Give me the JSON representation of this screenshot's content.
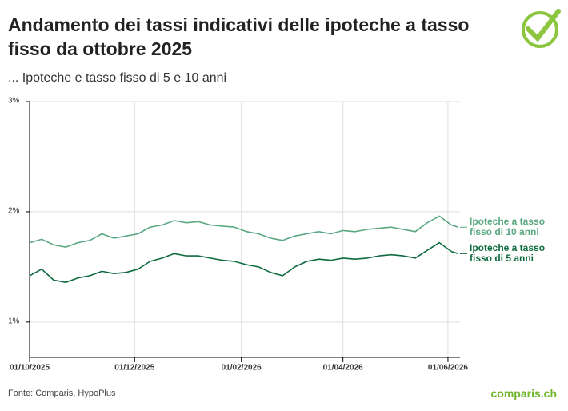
{
  "chart_data": {
    "type": "line",
    "title": "Andamento dei tassi indicativi delle ipoteche a tasso fisso da ottobre 2025",
    "subtitle": "... Ipoteche e tasso fisso di 5 e 10 anni",
    "source": "Fonte: Comparis, HypoPlus",
    "logo": "comparis.ch",
    "x": [
      "2025-10-01",
      "2025-10-08",
      "2025-10-15",
      "2025-10-22",
      "2025-10-29",
      "2025-11-05",
      "2025-11-12",
      "2025-11-19",
      "2025-11-26",
      "2025-12-03",
      "2025-12-10",
      "2025-12-17",
      "2025-12-24",
      "2025-12-31",
      "2026-01-07",
      "2026-01-14",
      "2026-01-21",
      "2026-01-28",
      "2026-02-04",
      "2026-02-11",
      "2026-02-18",
      "2026-02-25",
      "2026-03-04",
      "2026-03-11",
      "2026-03-18",
      "2026-03-25",
      "2026-04-01",
      "2026-04-08",
      "2026-04-15",
      "2026-04-22",
      "2026-04-29",
      "2026-05-06",
      "2026-05-13",
      "2026-05-20",
      "2026-05-27",
      "2026-06-03",
      "2026-06-07"
    ],
    "series": [
      {
        "name": "Ipoteche a tasso fisso di 10 anni",
        "color": "#5ba883",
        "values": [
          1.72,
          1.75,
          1.7,
          1.68,
          1.72,
          1.74,
          1.8,
          1.76,
          1.78,
          1.8,
          1.86,
          1.88,
          1.92,
          1.9,
          1.91,
          1.88,
          1.87,
          1.86,
          1.82,
          1.8,
          1.76,
          1.74,
          1.78,
          1.8,
          1.82,
          1.8,
          1.83,
          1.82,
          1.84,
          1.85,
          1.86,
          1.84,
          1.82,
          1.9,
          1.96,
          1.88,
          1.86
        ]
      },
      {
        "name": "Ipoteche a tasso fisso di 5 anni",
        "color": "#0e6b3f",
        "values": [
          1.42,
          1.48,
          1.38,
          1.36,
          1.4,
          1.42,
          1.46,
          1.44,
          1.45,
          1.48,
          1.55,
          1.58,
          1.62,
          1.6,
          1.6,
          1.58,
          1.56,
          1.55,
          1.52,
          1.5,
          1.45,
          1.42,
          1.5,
          1.55,
          1.57,
          1.56,
          1.58,
          1.57,
          1.58,
          1.6,
          1.61,
          1.6,
          1.58,
          1.65,
          1.72,
          1.64,
          1.62
        ]
      }
    ],
    "xlim": [
      "2025-10-01",
      "2026-06-08"
    ],
    "xticks": [
      {
        "value": "2025-10-01",
        "label": "01/10/2025"
      },
      {
        "value": "2025-12-01",
        "label": "01/12/2025"
      },
      {
        "value": "2026-02-01",
        "label": "01/02/2026"
      },
      {
        "value": "2026-04-01",
        "label": "01/04/2026"
      },
      {
        "value": "2026-06-01",
        "label": "01/06/2026"
      }
    ],
    "ylim": [
      0.68,
      3
    ],
    "yticks": [
      {
        "value": 1,
        "label": "1%"
      },
      {
        "value": 2,
        "label": "2%"
      },
      {
        "value": 3,
        "label": "3%"
      }
    ],
    "grid": true
  }
}
